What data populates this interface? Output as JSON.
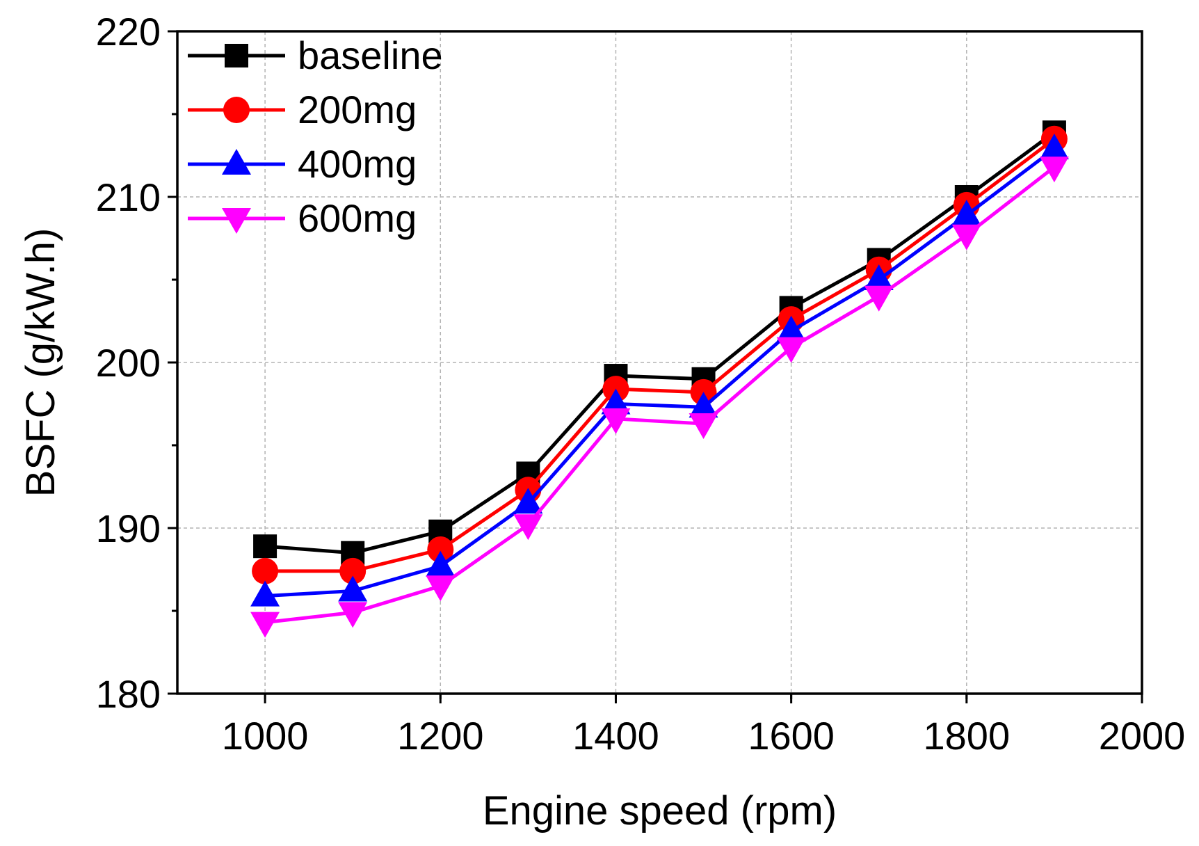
{
  "chart_data": {
    "type": "line",
    "title": "",
    "xlabel": "Engine speed (rpm)",
    "ylabel": "BSFC (g/kW.h)",
    "xlim": [
      900,
      2000
    ],
    "ylim": [
      180,
      220
    ],
    "x_ticks": [
      1000,
      1200,
      1400,
      1600,
      1800,
      2000
    ],
    "x_tick_labels": [
      "1000",
      "1200",
      "1400",
      "1600",
      "1800",
      "2000"
    ],
    "y_ticks": [
      180,
      190,
      200,
      210,
      220
    ],
    "y_tick_labels": [
      "180",
      "190",
      "200",
      "210",
      "220"
    ],
    "grid": true,
    "legend_position": "top-left",
    "x": [
      1000,
      1100,
      1200,
      1300,
      1400,
      1500,
      1600,
      1700,
      1800,
      1900
    ],
    "series": [
      {
        "name": "baseline",
        "color": "#000000",
        "marker": "square",
        "values": [
          188.9,
          188.5,
          189.8,
          193.3,
          199.2,
          199.0,
          203.3,
          206.2,
          210.0,
          213.9
        ]
      },
      {
        "name": "200mg",
        "color": "#ff0000",
        "marker": "circle",
        "values": [
          187.4,
          187.4,
          188.7,
          192.3,
          198.4,
          198.2,
          202.6,
          205.6,
          209.5,
          213.5
        ]
      },
      {
        "name": "400mg",
        "color": "#0000ff",
        "marker": "triangle-up",
        "values": [
          185.9,
          186.2,
          187.7,
          191.5,
          197.5,
          197.3,
          201.9,
          205.0,
          208.9,
          212.9
        ]
      },
      {
        "name": "600mg",
        "color": "#ff00ff",
        "marker": "triangle-down",
        "values": [
          184.3,
          184.9,
          186.5,
          190.2,
          196.6,
          196.3,
          200.9,
          204.0,
          207.7,
          211.8
        ]
      }
    ]
  }
}
